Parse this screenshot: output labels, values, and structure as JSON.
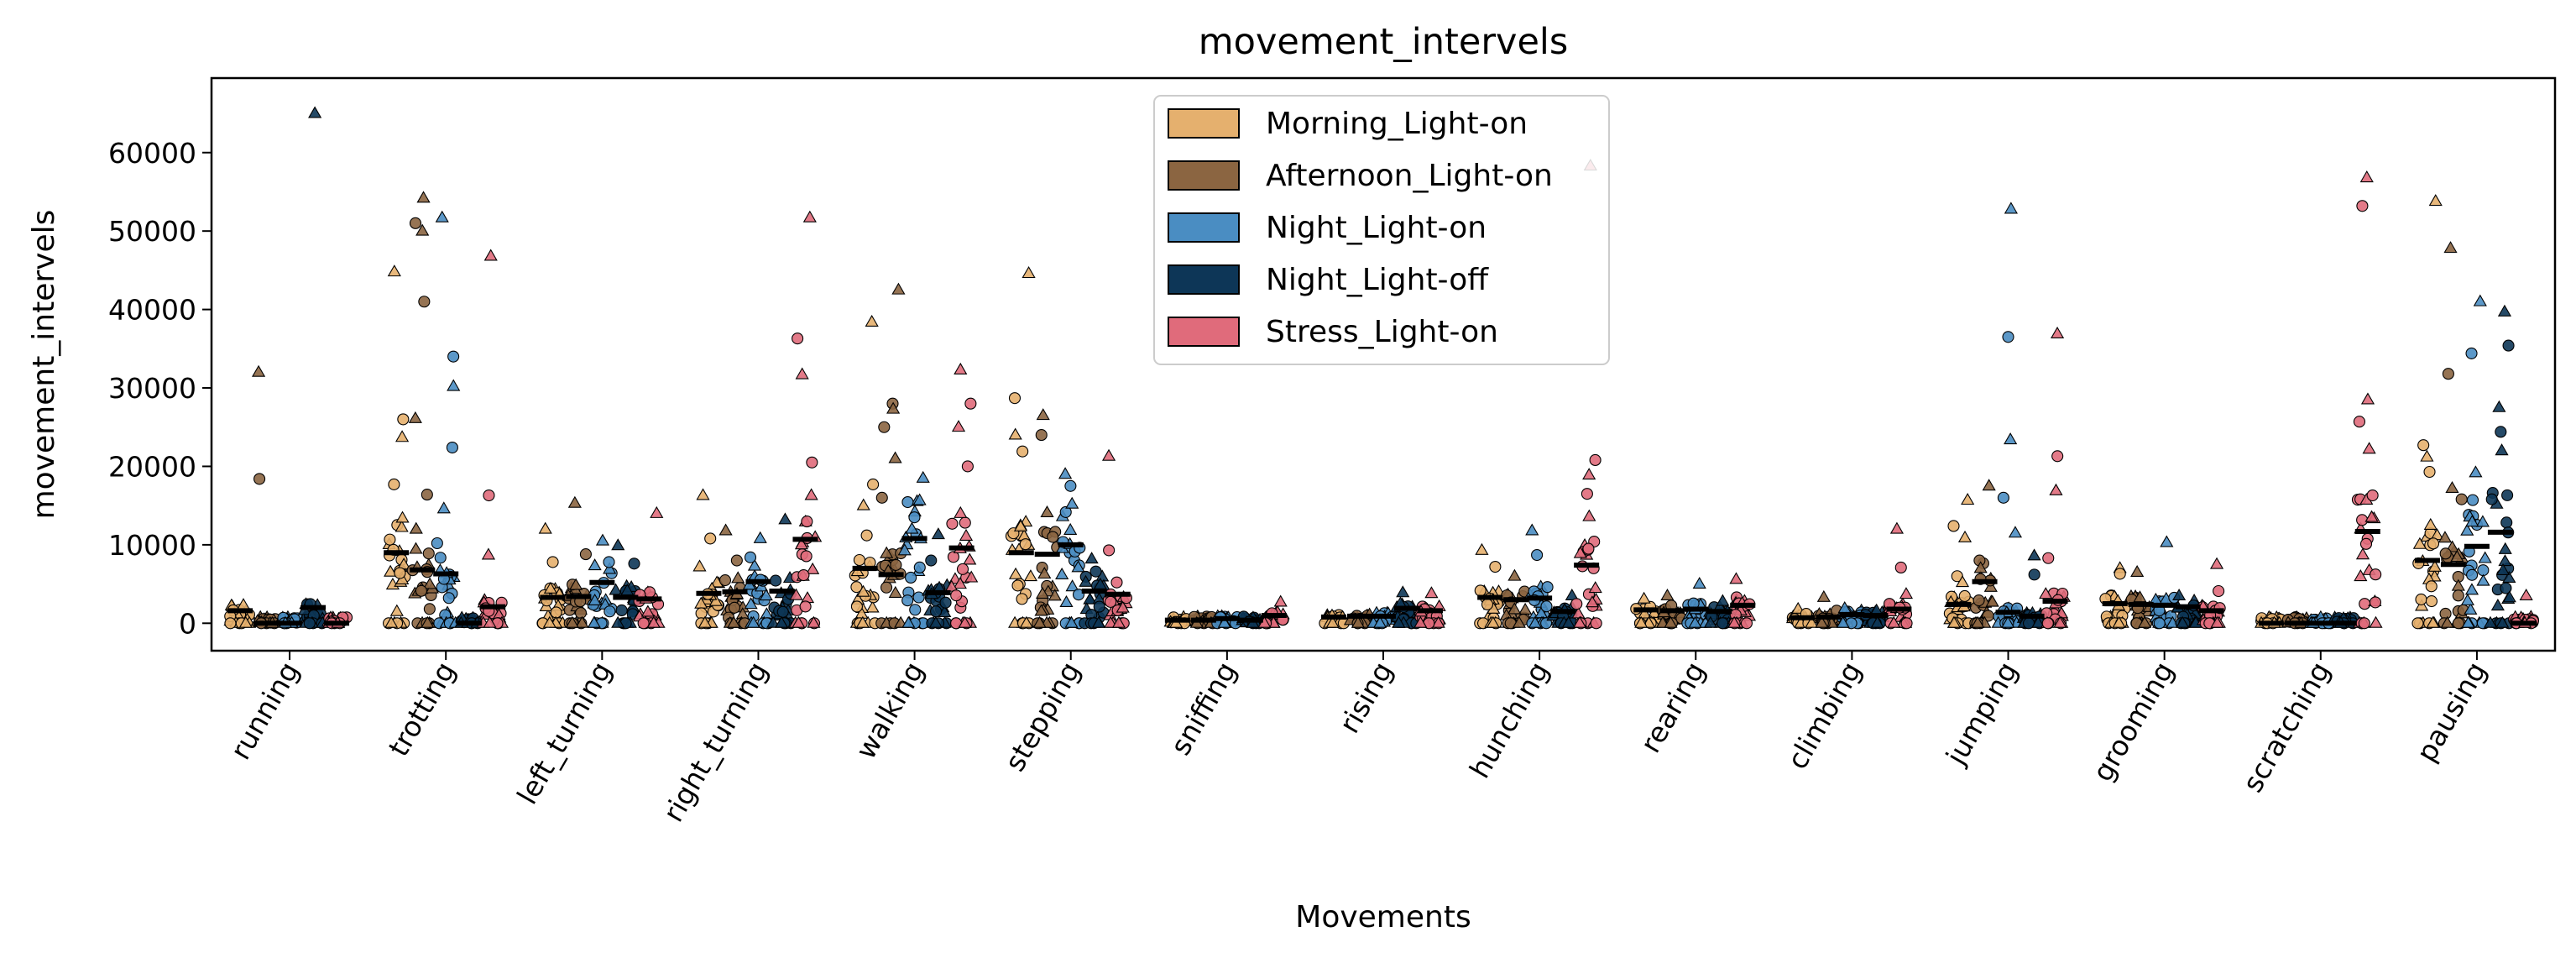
{
  "chart_data": {
    "type": "scatter",
    "title": "movement_intervels",
    "xlabel": "Movements",
    "ylabel": "movement_intervels",
    "ylim": [
      -3500,
      69500
    ],
    "yticks": [
      0,
      10000,
      20000,
      30000,
      40000,
      50000,
      60000
    ],
    "legend_position": "upper center",
    "categories": [
      "running",
      "trotting",
      "left_turning",
      "right_turning",
      "walking",
      "stepping",
      "sniffing",
      "rising",
      "hunching",
      "rearing",
      "climbing",
      "jumping",
      "grooming",
      "scratching",
      "pausing"
    ],
    "series": [
      {
        "name": "Morning_Light-on",
        "color": "#E5B06E",
        "means": [
          1600,
          9000,
          3300,
          3800,
          7000,
          9000,
          400,
          800,
          3300,
          1700,
          700,
          2400,
          2500,
          0,
          8000
        ],
        "outliers": [
          [],
          [
            44800,
            26000,
            23700,
            17700,
            13400,
            6400,
            1500
          ],
          [
            12000,
            7800
          ],
          [
            16300,
            10800,
            7200
          ],
          [
            38400,
            17700,
            15000,
            11200
          ],
          [
            44600,
            28700,
            24000,
            21900,
            12300
          ],
          [],
          [],
          [
            9300,
            7200
          ],
          [
            3100
          ],
          [
            1800,
            1200
          ],
          [
            15700,
            12400,
            10900,
            6000,
            5200
          ],
          [
            7000,
            6300
          ],
          [],
          [
            53800,
            22700,
            21200,
            19300,
            12500
          ]
        ]
      },
      {
        "name": "Afternoon_Light-on",
        "color": "#8B6541",
        "means": [
          0,
          6800,
          3400,
          4000,
          6200,
          8800,
          400,
          900,
          3000,
          1600,
          800,
          5300,
          2400,
          0,
          7500
        ],
        "outliers": [
          [
            32000,
            18400
          ],
          [
            54200,
            51000,
            50000,
            41000,
            26100,
            16400,
            12000
          ],
          [
            15300,
            8800
          ],
          [
            11800,
            8000
          ],
          [
            42500,
            28000,
            27300,
            25000,
            21000,
            16000
          ],
          [
            26500,
            24000,
            14100,
            11000
          ],
          [],
          [],
          [
            6000
          ],
          [
            3500
          ],
          [
            3300,
            1600
          ],
          [
            17500,
            8000,
            7000
          ],
          [
            6500
          ],
          [],
          [
            47800,
            31800,
            17200,
            15800
          ]
        ]
      },
      {
        "name": "Night_Light-on",
        "color": "#4A8DC2",
        "means": [
          0,
          6300,
          5200,
          5300,
          10800,
          10000,
          600,
          900,
          3200,
          1800,
          1100,
          1400,
          2300,
          0,
          9800
        ],
        "outliers": [
          [],
          [
            51700,
            34000,
            30200,
            22400,
            14600,
            10200
          ],
          [
            10500,
            7800
          ],
          [
            10800,
            8400
          ],
          [
            18500,
            13500,
            12000
          ],
          [
            19000,
            17500,
            15200
          ],
          [],
          [],
          [
            11800,
            8700
          ],
          [
            5000
          ],
          [
            1900
          ],
          [
            52800,
            36500,
            23400,
            16000,
            11500
          ],
          [
            10300
          ],
          [],
          [
            41000,
            34400,
            19200,
            15700,
            12900
          ]
        ]
      },
      {
        "name": "Night_Light-off",
        "color": "#0D3657",
        "means": [
          2000,
          0,
          3300,
          4100,
          3900,
          4100,
          400,
          1900,
          1500,
          1500,
          1000,
          900,
          2100,
          0,
          11600
        ],
        "outliers": [
          [
            65000
          ],
          [],
          [
            9900,
            7600
          ],
          [
            13200
          ],
          [
            11300,
            8000
          ],
          [
            8200,
            6600
          ],
          [],
          [
            3900
          ],
          [
            3500
          ],
          [
            2800
          ],
          [
            1600
          ],
          [
            8600,
            6200
          ],
          [
            3500
          ],
          [],
          [
            39700,
            35400,
            27500,
            24400,
            22000,
            15800
          ]
        ]
      },
      {
        "name": "Stress_Light-on",
        "color": "#E06B7B",
        "means": [
          0,
          2100,
          3100,
          10700,
          9600,
          3700,
          1000,
          1600,
          7400,
          2300,
          1800,
          2800,
          1600,
          11700,
          0
        ],
        "outliers": [
          [],
          [
            46800,
            16300,
            8700
          ],
          [
            14000
          ],
          [
            51700,
            36300,
            31700,
            20500,
            16300
          ],
          [
            32300,
            28000,
            25000,
            20000,
            14000
          ],
          [
            21300,
            9300
          ],
          [
            2700
          ],
          [
            3800
          ],
          [
            58300,
            20800,
            18900,
            16500,
            13600,
            9500
          ],
          [
            5600
          ],
          [
            12000,
            7100,
            3700
          ],
          [
            36900,
            21300,
            16900,
            8300
          ],
          [
            7500,
            4100
          ],
          [
            56800,
            53200,
            28500,
            25700,
            22200,
            16300,
            13500
          ],
          [
            3500
          ]
        ]
      }
    ]
  }
}
